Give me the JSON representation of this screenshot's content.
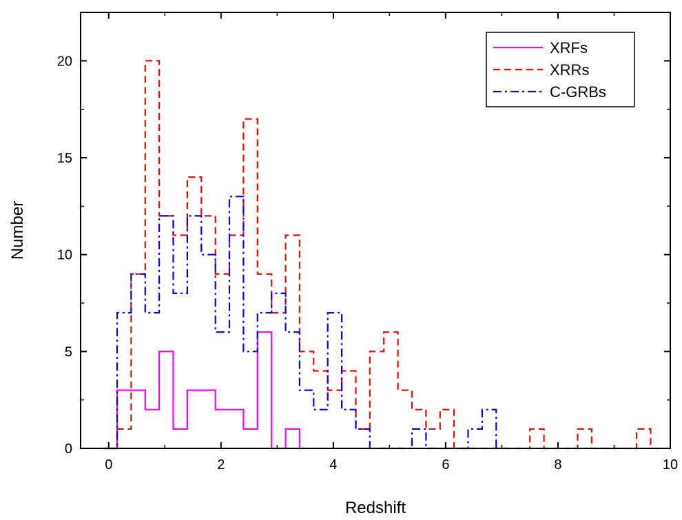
{
  "chart_data": {
    "type": "line",
    "subtype": "step-histogram",
    "title": "",
    "xlabel": "Redshift",
    "ylabel": "Number",
    "xlim": [
      -0.5,
      10
    ],
    "ylim": [
      0,
      22.5
    ],
    "xticks": [
      0,
      2,
      4,
      6,
      8,
      10
    ],
    "yticks": [
      0,
      5,
      10,
      15,
      20
    ],
    "xtick_labels": [
      "0",
      "2",
      "4",
      "6",
      "8",
      "10"
    ],
    "ytick_labels": [
      "0",
      "5",
      "10",
      "15",
      "20"
    ],
    "legend_position": "top-right",
    "grid": false,
    "series": [
      {
        "name": "XRFs",
        "color": "#ff00ff",
        "dash": "solid",
        "x": [
          -0.1,
          0.15,
          0.15,
          0.65,
          0.65,
          0.9,
          0.9,
          1.15,
          1.15,
          1.4,
          1.4,
          1.9,
          1.9,
          2.4,
          2.4,
          2.65,
          2.65,
          2.9,
          2.9,
          3.15,
          3.15,
          3.4,
          3.4,
          3.5
        ],
        "y": [
          0,
          0,
          3,
          3,
          2,
          2,
          5,
          5,
          1,
          1,
          3,
          3,
          2,
          2,
          1,
          1,
          6,
          6,
          0,
          0,
          1,
          1,
          0,
          0
        ]
      },
      {
        "name": "XRRs",
        "color": "#ff0000",
        "dash": "dashed",
        "x": [
          -0.1,
          0.15,
          0.15,
          0.4,
          0.4,
          0.65,
          0.65,
          0.9,
          0.9,
          1.15,
          1.15,
          1.4,
          1.4,
          1.65,
          1.65,
          1.9,
          1.9,
          2.15,
          2.15,
          2.4,
          2.4,
          2.65,
          2.65,
          2.9,
          2.9,
          3.15,
          3.15,
          3.4,
          3.4,
          3.65,
          3.65,
          3.9,
          3.9,
          4.15,
          4.15,
          4.4,
          4.4,
          4.65,
          4.65,
          4.9,
          4.9,
          5.15,
          5.15,
          5.4,
          5.4,
          5.65,
          5.65,
          5.9,
          5.9,
          6.15,
          6.15,
          7.5,
          7.5,
          7.75,
          7.75,
          8.0,
          8.0,
          8.35,
          8.35,
          8.6,
          8.6,
          9.4,
          9.4,
          9.65,
          9.65,
          9.8
        ],
        "y": [
          0,
          0,
          1,
          1,
          9,
          9,
          20,
          20,
          12,
          12,
          11,
          11,
          14,
          14,
          12,
          12,
          9,
          9,
          11,
          11,
          17,
          17,
          9,
          9,
          7,
          7,
          11,
          11,
          5,
          5,
          4,
          4,
          3,
          3,
          4,
          4,
          1,
          1,
          5,
          5,
          6,
          6,
          3,
          3,
          2,
          2,
          1,
          1,
          2,
          2,
          0,
          0,
          1,
          1,
          0,
          0,
          0,
          0,
          1,
          1,
          0,
          0,
          1,
          1,
          0,
          0
        ]
      },
      {
        "name": "C-GRBs",
        "color": "#0000ff",
        "dash": "dashdot",
        "x": [
          0.0,
          0.15,
          0.15,
          0.4,
          0.4,
          0.65,
          0.65,
          0.9,
          0.9,
          1.15,
          1.15,
          1.4,
          1.4,
          1.65,
          1.65,
          1.9,
          1.9,
          2.15,
          2.15,
          2.4,
          2.4,
          2.65,
          2.65,
          2.9,
          2.9,
          3.15,
          3.15,
          3.4,
          3.4,
          3.65,
          3.65,
          3.9,
          3.9,
          4.15,
          4.15,
          4.4,
          4.4,
          4.65,
          4.65,
          4.9,
          4.9,
          5.4,
          5.4,
          5.65,
          5.65,
          6.4,
          6.4,
          6.65,
          6.65,
          6.9,
          6.9
        ],
        "y": [
          0,
          0,
          7,
          7,
          9,
          9,
          7,
          7,
          12,
          12,
          8,
          8,
          12,
          12,
          10,
          10,
          6,
          6,
          13,
          13,
          5,
          5,
          7,
          7,
          8,
          8,
          6,
          6,
          3,
          3,
          2,
          2,
          7,
          7,
          2,
          2,
          1,
          1,
          0,
          0,
          0,
          0,
          1,
          1,
          0,
          0,
          1,
          1,
          2,
          2,
          0
        ]
      }
    ]
  }
}
